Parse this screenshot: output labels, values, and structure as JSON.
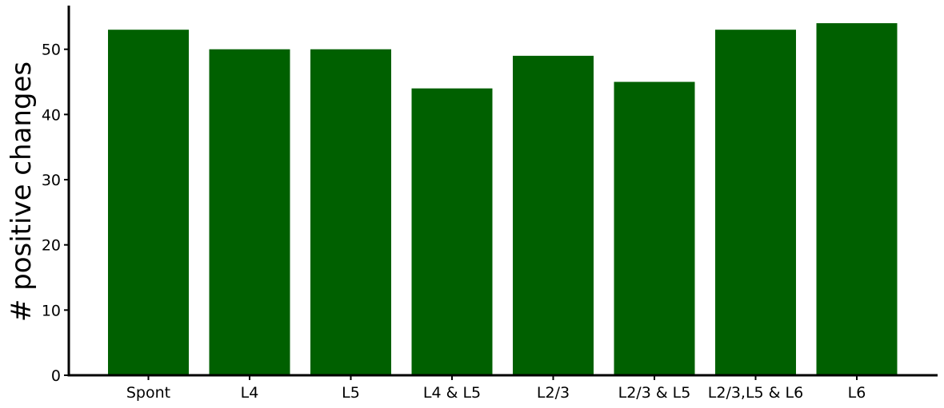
{
  "chart_data": {
    "type": "bar",
    "categories": [
      "Spont",
      "L4",
      "L5",
      "L4 & L5",
      "L2/3",
      "L2/3 & L5",
      "L2/3,L5 & L6",
      "L6"
    ],
    "values": [
      53,
      50,
      50,
      44,
      49,
      45,
      53,
      54
    ],
    "title": "",
    "xlabel": "",
    "ylabel": "# positive changes",
    "ylim": [
      0,
      56.7
    ],
    "yticks": [
      0,
      10,
      20,
      30,
      40,
      50
    ],
    "grid": false,
    "bar_color": "#006000"
  }
}
